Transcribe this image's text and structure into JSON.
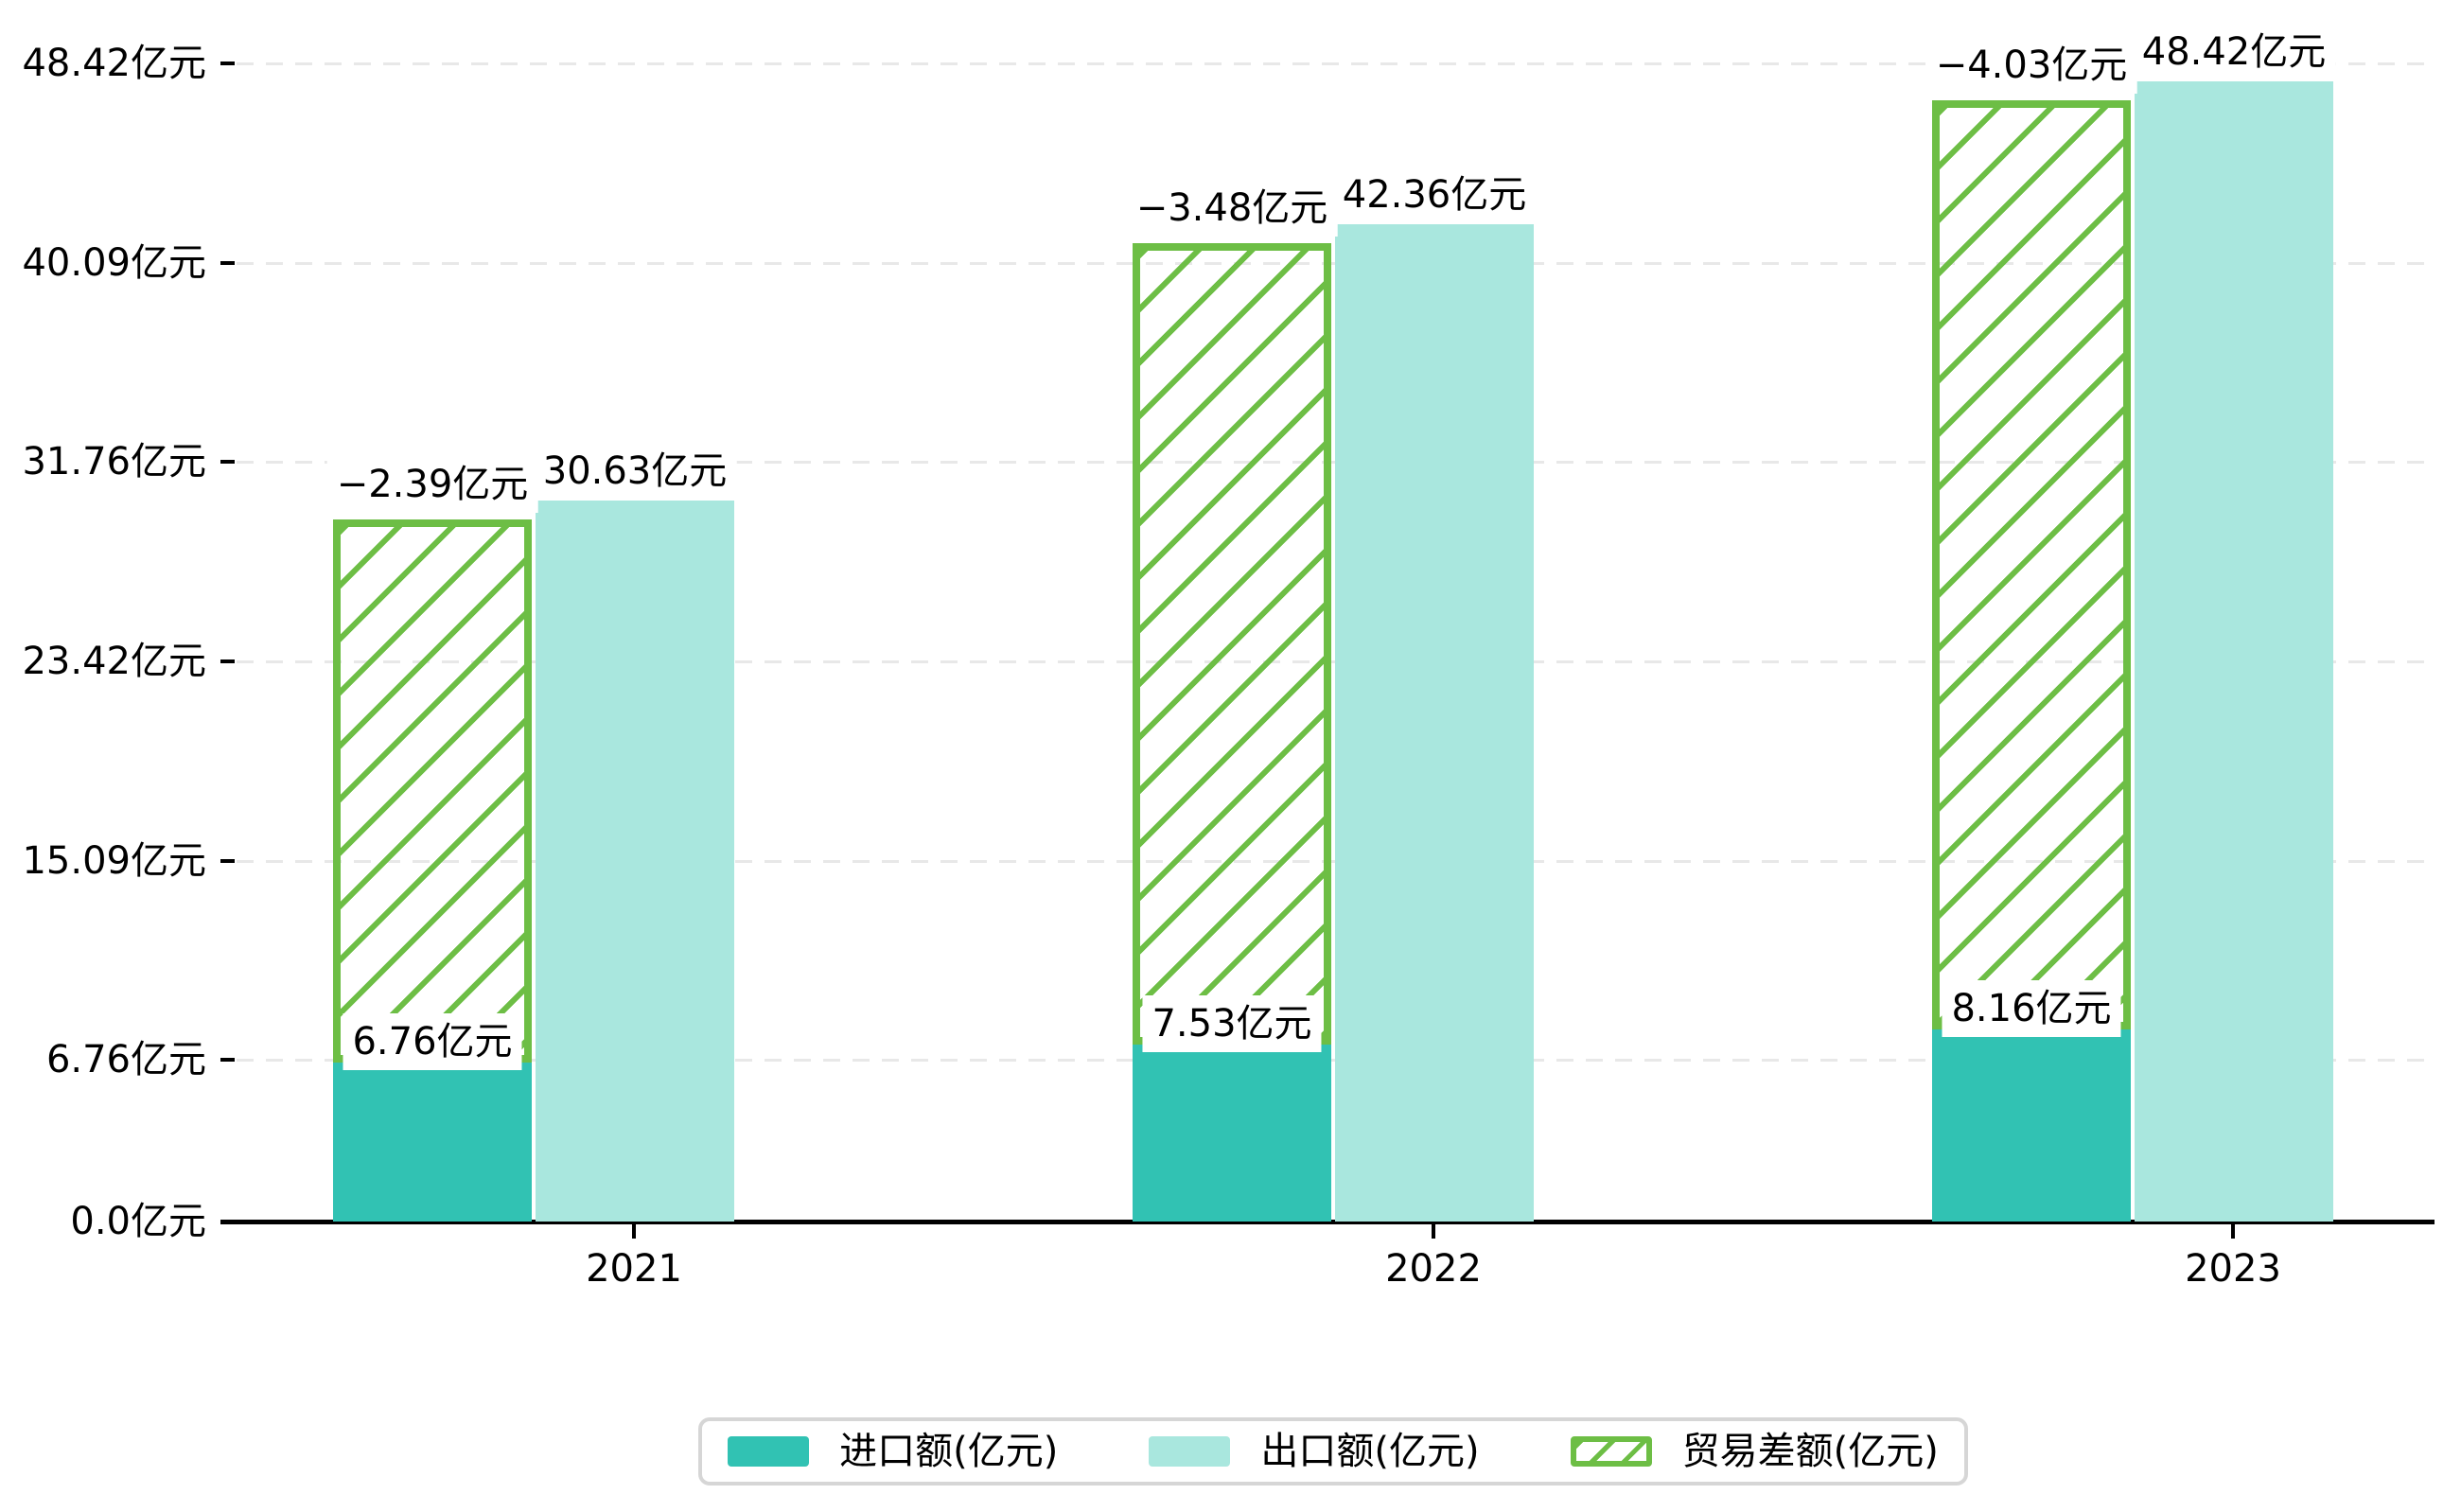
{
  "chart_data": {
    "type": "bar",
    "title": "",
    "categories": [
      "2021",
      "2022",
      "2023"
    ],
    "unit": "亿元",
    "series": [
      {
        "name": "进口额(亿元)",
        "role": "import",
        "color": "#31C2B3",
        "values": [
          6.76,
          7.53,
          8.16
        ],
        "data_labels": [
          "6.76亿元",
          "7.53亿元",
          "8.16亿元"
        ]
      },
      {
        "name": "出口额(亿元)",
        "role": "export",
        "color": "#A9E7DE",
        "values": [
          30.63,
          42.36,
          48.42
        ],
        "data_labels": [
          "30.63亿元",
          "42.36亿元",
          "48.42亿元"
        ]
      },
      {
        "name": "贸易差额(亿元)",
        "role": "balance",
        "color": "#6DBE45",
        "pattern": "diagonal-hatch",
        "values": [
          -2.39,
          -3.48,
          -4.03
        ],
        "data_labels": [
          "−2.39亿元",
          "−3.48亿元",
          "−4.03亿元"
        ]
      }
    ],
    "y_axis": {
      "range": [
        0,
        48.42
      ],
      "ticks": [
        {
          "value": 0,
          "label": "0.0亿元"
        },
        {
          "value": 6.76,
          "label": "6.76亿元"
        },
        {
          "value": 15.09,
          "label": "15.09亿元"
        },
        {
          "value": 23.42,
          "label": "23.42亿元"
        },
        {
          "value": 31.76,
          "label": "31.76亿元"
        },
        {
          "value": 40.09,
          "label": "40.09亿元"
        },
        {
          "value": 48.42,
          "label": "48.42亿元"
        }
      ]
    },
    "grid": true,
    "legend": {
      "position": "bottom",
      "items": [
        "进口额(亿元)",
        "出口额(亿元)",
        "贸易差额(亿元)"
      ]
    },
    "colors": {
      "import": "#31C2B3",
      "export": "#A9E7DE",
      "balance": "#6DBE45",
      "grid_line": "#E8E8E8",
      "axis": "#000000",
      "text": "#000000",
      "legend_border": "#D6D6D6",
      "background": "#FFFFFF"
    }
  }
}
